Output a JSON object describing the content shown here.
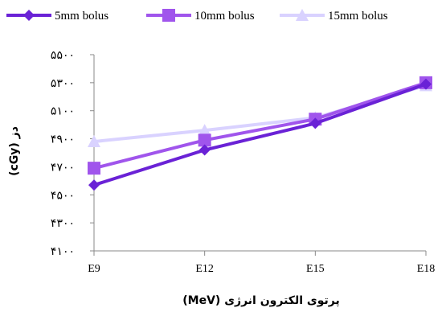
{
  "chart_data": {
    "type": "line",
    "categories": [
      "E9",
      "E12",
      "E15",
      "E18"
    ],
    "series": [
      {
        "name": "5mm bolus",
        "values": [
          4570,
          4820,
          5010,
          5290
        ],
        "color": "#6a22d6",
        "marker": "diamond"
      },
      {
        "name": "10mm bolus",
        "values": [
          4690,
          4890,
          5040,
          5300
        ],
        "color": "#a055ec",
        "marker": "square"
      },
      {
        "name": "15mm bolus",
        "values": [
          4880,
          4960,
          5050,
          5280
        ],
        "color": "#d9d2ff",
        "marker": "triangle"
      }
    ],
    "y_ticks": [
      {
        "value": 4100,
        "label": "۴۱۰۰"
      },
      {
        "value": 4300,
        "label": "۴۳۰۰"
      },
      {
        "value": 4500,
        "label": "۴۵۰۰"
      },
      {
        "value": 4700,
        "label": "۴۷۰۰"
      },
      {
        "value": 4900,
        "label": "۴۹۰۰"
      },
      {
        "value": 5100,
        "label": "۵۱۰۰"
      },
      {
        "value": 5300,
        "label": "۵۳۰۰"
      },
      {
        "value": 5500,
        "label": "۵۵۰۰"
      }
    ],
    "ylim": [
      4100,
      5500
    ],
    "xlabel": "(MeV) پرتوی الکترون انرژی",
    "ylabel": "(cGy) دز",
    "grid": false,
    "legend_position": "top"
  }
}
